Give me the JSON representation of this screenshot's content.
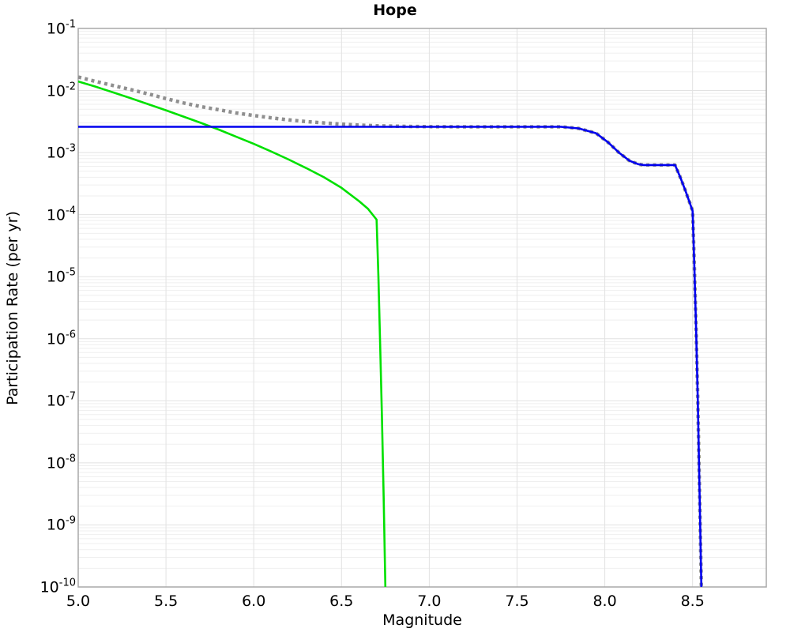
{
  "title": "Hope",
  "chart_data": {
    "type": "line",
    "title": "Hope",
    "xlabel": "Magnitude",
    "ylabel": "Participation Rate (per yr)",
    "x_axis": {
      "min": 5.0,
      "max": 8.92,
      "tick_values": [
        5.0,
        5.5,
        6.0,
        6.5,
        7.0,
        7.5,
        8.0,
        8.5
      ],
      "tick_labels": [
        "5.0",
        "5.5",
        "6.0",
        "6.5",
        "7.0",
        "7.5",
        "8.0",
        "8.5"
      ]
    },
    "y_axis": {
      "scale": "log",
      "min": 1e-10,
      "max": 0.1,
      "tick_exponents": [
        -1,
        -2,
        -3,
        -4,
        -5,
        -6,
        -7,
        -8,
        -9,
        -10
      ]
    },
    "grid": {
      "major": true,
      "minor_log": true
    },
    "legend": "none",
    "series": [
      {
        "name": "total-rate-dotted",
        "style": "dotted",
        "color": "#8f8f8f",
        "width": 4.5,
        "points": [
          [
            5.0,
            0.0165
          ],
          [
            5.1,
            0.014
          ],
          [
            5.2,
            0.012
          ],
          [
            5.3,
            0.0103
          ],
          [
            5.4,
            0.0088
          ],
          [
            5.5,
            0.0074
          ],
          [
            5.6,
            0.0063
          ],
          [
            5.7,
            0.0055
          ],
          [
            5.8,
            0.0049
          ],
          [
            5.9,
            0.00435
          ],
          [
            6.0,
            0.00395
          ],
          [
            6.1,
            0.00362
          ],
          [
            6.2,
            0.00336
          ],
          [
            6.3,
            0.00316
          ],
          [
            6.4,
            0.003
          ],
          [
            6.5,
            0.00287
          ],
          [
            6.6,
            0.00277
          ],
          [
            6.7,
            0.0027
          ],
          [
            6.8,
            0.00266
          ],
          [
            6.9,
            0.00263
          ],
          [
            7.0,
            0.00262
          ],
          [
            7.2,
            0.0026
          ],
          [
            7.75,
            0.0026
          ],
          [
            7.85,
            0.00245
          ],
          [
            7.95,
            0.00205
          ],
          [
            8.02,
            0.00145
          ],
          [
            8.08,
            0.001
          ],
          [
            8.14,
            0.00074
          ],
          [
            8.19,
            0.00065
          ],
          [
            8.22,
            0.00063
          ],
          [
            8.4,
            0.00063
          ],
          [
            8.43,
            0.0004
          ],
          [
            8.46,
            0.00024
          ],
          [
            8.5,
            0.000115
          ],
          [
            8.51,
            1.5e-05
          ],
          [
            8.52,
            1.5e-06
          ],
          [
            8.53,
            1e-07
          ],
          [
            8.54,
            3e-09
          ],
          [
            8.55,
            1e-10
          ]
        ]
      },
      {
        "name": "gr-branch-green",
        "style": "solid",
        "color": "#00e000",
        "width": 2.6,
        "points": [
          [
            5.0,
            0.014
          ],
          [
            5.1,
            0.0115
          ],
          [
            5.2,
            0.0093
          ],
          [
            5.3,
            0.0075
          ],
          [
            5.4,
            0.006
          ],
          [
            5.5,
            0.0048
          ],
          [
            5.6,
            0.0038
          ],
          [
            5.7,
            0.003
          ],
          [
            5.8,
            0.00235
          ],
          [
            5.9,
            0.0018
          ],
          [
            6.0,
            0.00138
          ],
          [
            6.1,
            0.00104
          ],
          [
            6.2,
            0.00077
          ],
          [
            6.3,
            0.00056
          ],
          [
            6.4,
            0.0004
          ],
          [
            6.5,
            0.00027
          ],
          [
            6.6,
            0.000165
          ],
          [
            6.65,
            0.000125
          ],
          [
            6.7,
            8.3e-05
          ],
          [
            6.71,
            1e-05
          ],
          [
            6.72,
            8e-07
          ],
          [
            6.73,
            6e-08
          ],
          [
            6.74,
            3e-09
          ],
          [
            6.75,
            1e-10
          ]
        ]
      },
      {
        "name": "characteristic-branch-blue",
        "style": "solid",
        "color": "#0000ee",
        "width": 2.6,
        "points": [
          [
            5.0,
            0.0026
          ],
          [
            7.75,
            0.0026
          ],
          [
            7.85,
            0.00245
          ],
          [
            7.95,
            0.00205
          ],
          [
            8.02,
            0.00145
          ],
          [
            8.08,
            0.001
          ],
          [
            8.14,
            0.00074
          ],
          [
            8.19,
            0.00065
          ],
          [
            8.22,
            0.00063
          ],
          [
            8.4,
            0.00063
          ],
          [
            8.43,
            0.0004
          ],
          [
            8.46,
            0.00024
          ],
          [
            8.5,
            0.000115
          ],
          [
            8.51,
            1.5e-05
          ],
          [
            8.52,
            1.5e-06
          ],
          [
            8.53,
            1e-07
          ],
          [
            8.54,
            3e-09
          ],
          [
            8.55,
            1e-10
          ]
        ]
      }
    ]
  },
  "colors": {
    "grid_major": "#e2e2e2",
    "grid_minor": "#efefef",
    "axis_border": "#a8a8a8",
    "background": "#ffffff"
  }
}
